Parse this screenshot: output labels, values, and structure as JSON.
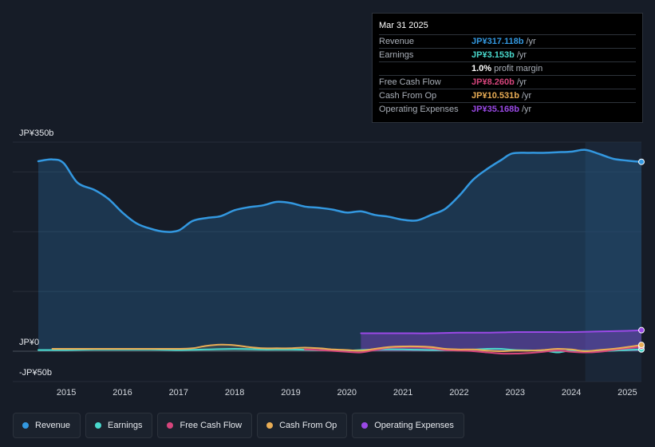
{
  "colors": {
    "revenue": "#3398e0",
    "earnings": "#49d8cc",
    "free_cash_flow": "#d6457c",
    "cash_from_op": "#e9ad55",
    "operating_expenses": "#9a49e6"
  },
  "tooltip": {
    "date": "Mar 31 2025",
    "rows": [
      {
        "label": "Revenue",
        "value": "JP¥317.118b",
        "unit": "/yr",
        "color": "#3398e0"
      },
      {
        "label": "Earnings",
        "value": "JP¥3.153b",
        "unit": "/yr",
        "color": "#49d8cc"
      },
      {
        "label": "",
        "value": "1.0%",
        "unit": "profit margin",
        "color": "#ffffff"
      },
      {
        "label": "Free Cash Flow",
        "value": "JP¥8.260b",
        "unit": "/yr",
        "color": "#d6457c"
      },
      {
        "label": "Cash From Op",
        "value": "JP¥10.531b",
        "unit": "/yr",
        "color": "#e9ad55"
      },
      {
        "label": "Operating Expenses",
        "value": "JP¥35.168b",
        "unit": "/yr",
        "color": "#9a49e6"
      }
    ]
  },
  "legend": [
    {
      "label": "Revenue",
      "color": "#3398e0"
    },
    {
      "label": "Earnings",
      "color": "#49d8cc"
    },
    {
      "label": "Free Cash Flow",
      "color": "#d6457c"
    },
    {
      "label": "Cash From Op",
      "color": "#e9ad55"
    },
    {
      "label": "Operating Expenses",
      "color": "#9a49e6"
    }
  ],
  "chart_data": {
    "type": "area",
    "title": "",
    "units": "JP¥ billions",
    "ylim": [
      -50,
      350
    ],
    "y_tick_labels": [
      {
        "value": 350,
        "label": "JP¥350b"
      },
      {
        "value": 0,
        "label": "JP¥0"
      },
      {
        "value": -50,
        "label": "-JP¥50b"
      }
    ],
    "x_ticks": [
      2015,
      2016,
      2017,
      2018,
      2019,
      2020,
      2021,
      2022,
      2023,
      2024,
      2025
    ],
    "xlim": [
      2014.5,
      2025.25
    ],
    "forecast_start": 2024.25,
    "series": [
      {
        "name": "Revenue",
        "key": "revenue",
        "points": [
          [
            2014.5,
            318
          ],
          [
            2014.75,
            321
          ],
          [
            2014.95,
            315
          ],
          [
            2015.2,
            282
          ],
          [
            2015.5,
            270
          ],
          [
            2015.75,
            255
          ],
          [
            2016.0,
            232
          ],
          [
            2016.25,
            214
          ],
          [
            2016.5,
            205
          ],
          [
            2016.75,
            200
          ],
          [
            2017.0,
            202
          ],
          [
            2017.25,
            218
          ],
          [
            2017.5,
            223
          ],
          [
            2017.75,
            226
          ],
          [
            2018.0,
            236
          ],
          [
            2018.25,
            241
          ],
          [
            2018.5,
            244
          ],
          [
            2018.75,
            250
          ],
          [
            2019.0,
            248
          ],
          [
            2019.25,
            242
          ],
          [
            2019.5,
            240
          ],
          [
            2019.75,
            237
          ],
          [
            2020.0,
            232
          ],
          [
            2020.25,
            234
          ],
          [
            2020.5,
            228
          ],
          [
            2020.75,
            225
          ],
          [
            2021.0,
            220
          ],
          [
            2021.25,
            219
          ],
          [
            2021.5,
            228
          ],
          [
            2021.75,
            238
          ],
          [
            2022.0,
            260
          ],
          [
            2022.25,
            287
          ],
          [
            2022.5,
            305
          ],
          [
            2022.75,
            320
          ],
          [
            2022.95,
            331
          ],
          [
            2023.25,
            332
          ],
          [
            2023.5,
            332
          ],
          [
            2023.75,
            333
          ],
          [
            2024.0,
            334
          ],
          [
            2024.25,
            337
          ],
          [
            2024.5,
            330
          ],
          [
            2024.75,
            322
          ],
          [
            2025.0,
            319
          ],
          [
            2025.25,
            317
          ]
        ]
      },
      {
        "name": "Earnings",
        "key": "earnings",
        "points": [
          [
            2014.5,
            2
          ],
          [
            2015.0,
            2
          ],
          [
            2015.5,
            3
          ],
          [
            2016.0,
            3
          ],
          [
            2016.5,
            3
          ],
          [
            2017.0,
            2
          ],
          [
            2017.5,
            3
          ],
          [
            2018.0,
            4
          ],
          [
            2018.5,
            3
          ],
          [
            2019.0,
            3
          ],
          [
            2019.5,
            2
          ],
          [
            2020.0,
            1
          ],
          [
            2020.5,
            3
          ],
          [
            2021.0,
            3
          ],
          [
            2021.5,
            2
          ],
          [
            2022.0,
            2
          ],
          [
            2022.5,
            4
          ],
          [
            2022.75,
            4
          ],
          [
            2023.0,
            2
          ],
          [
            2023.5,
            1
          ],
          [
            2023.75,
            -2
          ],
          [
            2024.0,
            1
          ],
          [
            2024.5,
            0
          ],
          [
            2025.0,
            2
          ],
          [
            2025.25,
            3
          ]
        ]
      },
      {
        "name": "Free Cash Flow",
        "key": "free_cash_flow",
        "points": [
          [
            2019.25,
            3
          ],
          [
            2019.5,
            2
          ],
          [
            2020.0,
            -1
          ],
          [
            2020.25,
            -2
          ],
          [
            2020.5,
            2
          ],
          [
            2020.75,
            6
          ],
          [
            2021.0,
            7
          ],
          [
            2021.25,
            7
          ],
          [
            2021.5,
            5
          ],
          [
            2021.75,
            2
          ],
          [
            2022.0,
            1
          ],
          [
            2022.25,
            0
          ],
          [
            2022.5,
            -2
          ],
          [
            2022.75,
            -4
          ],
          [
            2023.0,
            -4
          ],
          [
            2023.25,
            -3
          ],
          [
            2023.5,
            -1
          ],
          [
            2023.75,
            1
          ],
          [
            2024.0,
            -1
          ],
          [
            2024.25,
            -2
          ],
          [
            2024.5,
            -1
          ],
          [
            2024.75,
            2
          ],
          [
            2025.0,
            5
          ],
          [
            2025.25,
            8
          ]
        ]
      },
      {
        "name": "Cash From Op",
        "key": "cash_from_op",
        "points": [
          [
            2014.75,
            4
          ],
          [
            2015.0,
            4
          ],
          [
            2015.5,
            4
          ],
          [
            2016.0,
            4
          ],
          [
            2016.5,
            4
          ],
          [
            2017.0,
            4
          ],
          [
            2017.25,
            5
          ],
          [
            2017.5,
            9
          ],
          [
            2017.75,
            11
          ],
          [
            2018.0,
            10
          ],
          [
            2018.25,
            7
          ],
          [
            2018.5,
            5
          ],
          [
            2018.75,
            5
          ],
          [
            2019.0,
            5
          ],
          [
            2019.25,
            6
          ],
          [
            2019.5,
            5
          ],
          [
            2019.75,
            3
          ],
          [
            2020.0,
            2
          ],
          [
            2020.25,
            1
          ],
          [
            2020.5,
            4
          ],
          [
            2020.75,
            7
          ],
          [
            2021.0,
            8
          ],
          [
            2021.25,
            8
          ],
          [
            2021.5,
            7
          ],
          [
            2021.75,
            4
          ],
          [
            2022.0,
            3
          ],
          [
            2022.25,
            3
          ],
          [
            2022.5,
            1
          ],
          [
            2022.75,
            0
          ],
          [
            2023.0,
            1
          ],
          [
            2023.25,
            1
          ],
          [
            2023.5,
            2
          ],
          [
            2023.75,
            4
          ],
          [
            2024.0,
            3
          ],
          [
            2024.25,
            0
          ],
          [
            2024.5,
            2
          ],
          [
            2024.75,
            4
          ],
          [
            2025.0,
            7
          ],
          [
            2025.25,
            10.5
          ]
        ]
      },
      {
        "name": "Operating Expenses",
        "key": "operating_expenses",
        "points": [
          [
            2020.25,
            30
          ],
          [
            2020.5,
            30
          ],
          [
            2021.0,
            30
          ],
          [
            2021.5,
            30
          ],
          [
            2022.0,
            31
          ],
          [
            2022.5,
            31
          ],
          [
            2023.0,
            32
          ],
          [
            2023.5,
            32
          ],
          [
            2024.0,
            32
          ],
          [
            2024.5,
            33
          ],
          [
            2025.0,
            34
          ],
          [
            2025.25,
            35.2
          ]
        ]
      }
    ]
  }
}
